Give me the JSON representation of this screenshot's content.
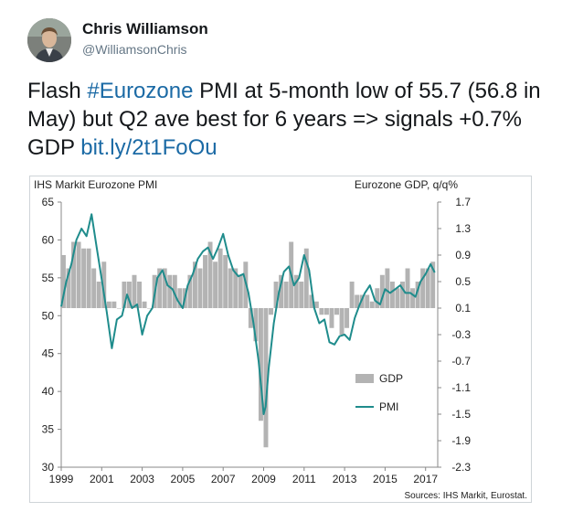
{
  "tweet": {
    "author_name": "Chris Williamson",
    "author_handle": "@WilliamsonChris",
    "text_1": "Flash ",
    "hashtag": "#Eurozone",
    "text_2": " PMI at 5-month low of 55.7 (56.8 in May) but Q2 ave best for 6 years  => signals +0.7% GDP ",
    "link": "bit.ly/2t1FoOu"
  },
  "colors": {
    "gdp_bars": "#b3b3b3",
    "pmi_line": "#1f8c8c",
    "link": "#1b6aa5"
  },
  "chart_data": {
    "type": "bar",
    "title": "IHS Markit Eurozone PMI",
    "right_axis_title": "Eurozone GDP, q/q%",
    "source": "Sources: IHS Markit, Eurostat.",
    "legend": {
      "gdp": "GDP",
      "pmi": "PMI",
      "position": "bottom-right"
    },
    "x_tick_labels": [
      "1999",
      "2001",
      "2003",
      "2005",
      "2007",
      "2009",
      "2011",
      "2013",
      "2015",
      "2017"
    ],
    "x_range": [
      1999,
      2017.6
    ],
    "left_axis": {
      "range": [
        30,
        65
      ],
      "ticks": [
        "30",
        "35",
        "40",
        "45",
        "50",
        "55",
        "60",
        "65"
      ]
    },
    "right_axis": {
      "range": [
        -2.3,
        1.7
      ],
      "ticks": [
        "-2.3",
        "-1.9",
        "-1.5",
        "-1.1",
        "-0.7",
        "-0.3",
        "0.1",
        "0.5",
        "0.9",
        "1.3",
        "1.7"
      ]
    },
    "series": [
      {
        "name": "GDP",
        "type": "bar",
        "axis": "right",
        "x": [
          1999.0,
          1999.25,
          1999.5,
          1999.75,
          2000.0,
          2000.25,
          2000.5,
          2000.75,
          2001.0,
          2001.25,
          2001.5,
          2001.75,
          2002.0,
          2002.25,
          2002.5,
          2002.75,
          2003.0,
          2003.25,
          2003.5,
          2003.75,
          2004.0,
          2004.25,
          2004.5,
          2004.75,
          2005.0,
          2005.25,
          2005.5,
          2005.75,
          2006.0,
          2006.25,
          2006.5,
          2006.75,
          2007.0,
          2007.25,
          2007.5,
          2007.75,
          2008.0,
          2008.25,
          2008.5,
          2008.75,
          2009.0,
          2009.25,
          2009.5,
          2009.75,
          2010.0,
          2010.25,
          2010.5,
          2010.75,
          2011.0,
          2011.25,
          2011.5,
          2011.75,
          2012.0,
          2012.25,
          2012.5,
          2012.75,
          2013.0,
          2013.25,
          2013.5,
          2013.75,
          2014.0,
          2014.25,
          2014.5,
          2014.75,
          2015.0,
          2015.25,
          2015.5,
          2015.75,
          2016.0,
          2016.25,
          2016.5,
          2016.75,
          2017.0,
          2017.25
        ],
        "values": [
          0.8,
          0.6,
          1.0,
          1.0,
          0.9,
          0.9,
          0.6,
          0.4,
          0.7,
          0.1,
          0.1,
          0.0,
          0.4,
          0.4,
          0.5,
          0.4,
          0.1,
          0.0,
          0.5,
          0.6,
          0.6,
          0.5,
          0.5,
          0.3,
          0.3,
          0.5,
          0.7,
          0.6,
          0.8,
          1.0,
          0.7,
          0.9,
          0.8,
          0.6,
          0.6,
          0.5,
          0.7,
          -0.3,
          -0.5,
          -1.7,
          -2.1,
          -0.1,
          0.4,
          0.5,
          0.4,
          1.0,
          0.5,
          0.4,
          0.9,
          0.2,
          0.1,
          -0.1,
          -0.1,
          -0.3,
          -0.1,
          -0.4,
          -0.3,
          0.4,
          0.2,
          0.2,
          0.2,
          0.1,
          0.3,
          0.5,
          0.6,
          0.4,
          0.3,
          0.4,
          0.6,
          0.3,
          0.4,
          0.6,
          0.6,
          0.7
        ]
      },
      {
        "name": "PMI",
        "type": "line",
        "axis": "left",
        "x": [
          1999.0,
          1999.25,
          1999.5,
          1999.75,
          2000.0,
          2000.25,
          2000.5,
          2000.75,
          2001.0,
          2001.25,
          2001.5,
          2001.75,
          2002.0,
          2002.25,
          2002.5,
          2002.75,
          2003.0,
          2003.25,
          2003.5,
          2003.75,
          2004.0,
          2004.25,
          2004.5,
          2004.75,
          2005.0,
          2005.25,
          2005.5,
          2005.75,
          2006.0,
          2006.25,
          2006.5,
          2006.75,
          2007.0,
          2007.25,
          2007.5,
          2007.75,
          2008.0,
          2008.25,
          2008.5,
          2008.75,
          2008.9,
          2009.0,
          2009.1,
          2009.25,
          2009.5,
          2009.75,
          2010.0,
          2010.25,
          2010.5,
          2010.75,
          2011.0,
          2011.25,
          2011.5,
          2011.75,
          2012.0,
          2012.25,
          2012.5,
          2012.75,
          2013.0,
          2013.25,
          2013.5,
          2013.75,
          2014.0,
          2014.25,
          2014.5,
          2014.75,
          2015.0,
          2015.25,
          2015.5,
          2015.75,
          2016.0,
          2016.25,
          2016.5,
          2016.75,
          2017.0,
          2017.25,
          2017.45
        ],
        "values": [
          51.2,
          54.5,
          56.8,
          60.0,
          61.5,
          60.5,
          63.4,
          59.0,
          54.8,
          50.5,
          45.7,
          49.5,
          50.0,
          52.8,
          51.0,
          51.5,
          47.5,
          50.0,
          51.0,
          55.0,
          56.0,
          54.0,
          53.5,
          52.0,
          51.0,
          54.0,
          55.5,
          57.5,
          58.5,
          59.0,
          57.5,
          59.0,
          60.8,
          58.0,
          56.0,
          55.2,
          55.5,
          53.0,
          49.0,
          44.0,
          40.0,
          37.0,
          38.0,
          43.0,
          49.0,
          53.0,
          55.8,
          56.5,
          54.0,
          55.0,
          58.0,
          56.0,
          51.0,
          49.0,
          49.5,
          46.5,
          46.2,
          47.3,
          47.5,
          46.8,
          49.7,
          51.5,
          53.0,
          54.0,
          52.0,
          51.5,
          53.5,
          53.0,
          53.5,
          54.0,
          53.0,
          53.0,
          52.5,
          54.5,
          55.5,
          56.8,
          55.7
        ]
      }
    ]
  }
}
